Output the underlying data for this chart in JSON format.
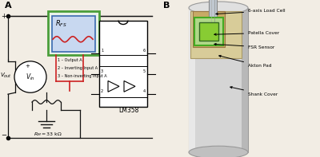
{
  "panel_a_label": "A",
  "panel_b_label": "B",
  "background_color": "#f2ede4",
  "fsr_box_green": "#4a9e3a",
  "fsr_box_blue": "#3a6ab0",
  "fsr_inner_fill": "#c8d8f0",
  "fsr_outer_fill": "#e8f2e8",
  "resistor_red": "#cc2222",
  "wire_red": "#cc2222",
  "wire_black": "#111111",
  "circuit_labels": [
    "1 – Output A",
    "2 – Inverting Input A",
    "3 – Non-inverting Input A"
  ],
  "lm_label": "LM358",
  "rm_label": "R_M = 33 kΩ",
  "panel_b_labels": [
    "6-axis Load Cell",
    "Patella Cover",
    "FSR Sensor",
    "Akton Pad",
    "Shank Cover"
  ],
  "cyl_face": "#d5d5d5",
  "cyl_edge": "#999999",
  "cyl_side_l": "#e8e8e8",
  "cyl_side_r": "#b8b8b8",
  "rod_color": "#b0b8c8",
  "pad_color": "#d8cc99",
  "sensor_green_outer": "#44aa22",
  "sensor_green_inner": "#88cc33",
  "sensor_yellow": "#cccc44"
}
